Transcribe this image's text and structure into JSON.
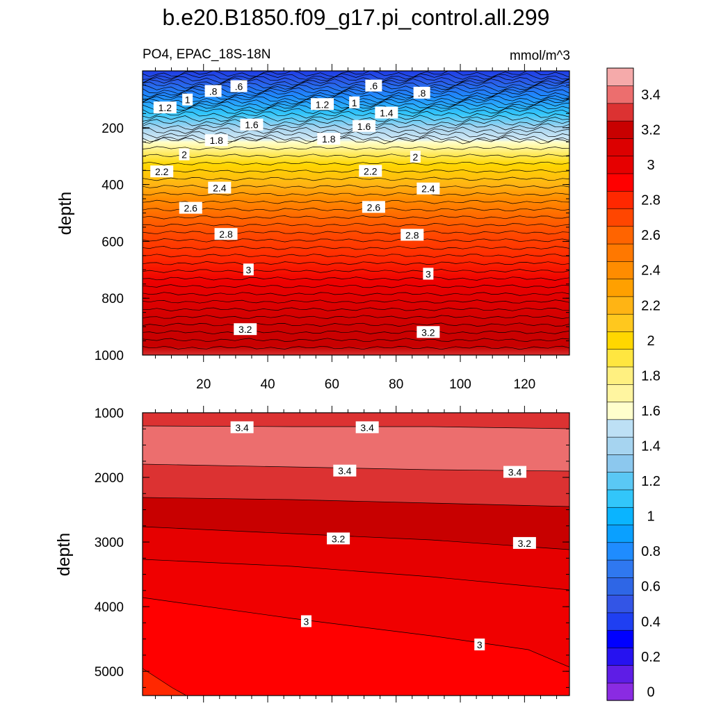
{
  "chart_data": {
    "type": "contour",
    "title": "b.e20.B1850.f09_g17.pi_control.all.299",
    "subtitle_left": "PO4, EPAC_18S-18N",
    "units": "mmol/m^3",
    "ylabel": "depth",
    "xlim": [
      1,
      134
    ],
    "x_ticks": [
      20,
      40,
      60,
      80,
      100,
      120
    ],
    "colorbar": {
      "colors": [
        "#8a2be2",
        "#5e1de6",
        "#2612f0",
        "#0000ff",
        "#1f3ff2",
        "#3355e6",
        "#2e66e6",
        "#2f78f0",
        "#1f8cff",
        "#0aa0ff",
        "#0ab4ff",
        "#32c6fa",
        "#5ac8f5",
        "#8cc8ee",
        "#a6d4f0",
        "#bde0f5",
        "#ffffcc",
        "#fff5a0",
        "#fff080",
        "#ffe640",
        "#ffd700",
        "#ffc81e",
        "#ffb414",
        "#ffa000",
        "#ff8c00",
        "#ff7800",
        "#ff6400",
        "#ff4600",
        "#ff2800",
        "#ff0000",
        "#e60000",
        "#dc0000",
        "#c80000",
        "#dc3232",
        "#ec6e6e",
        "#f5aaaa"
      ],
      "labels": [
        "0",
        "0.2",
        "0.4",
        "0.6",
        "0.8",
        "1",
        "1.2",
        "1.4",
        "1.6",
        "1.8",
        "2",
        "2.2",
        "2.4",
        "2.6",
        "2.8",
        "3",
        "3.2",
        "3.4"
      ]
    },
    "panels": [
      {
        "name": "upper",
        "ylim": [
          0,
          1000
        ],
        "y_ticks": [
          200,
          400,
          600,
          800,
          1000
        ],
        "y_tick_labels": [
          "200",
          "400",
          "600",
          "800",
          "1000"
        ],
        "contour_labels": [
          {
            "text": ".6",
            "x": 31,
            "y": 55
          },
          {
            "text": ".6",
            "x": 73,
            "y": 53
          },
          {
            "text": ".8",
            "x": 23,
            "y": 72
          },
          {
            "text": ".8",
            "x": 88,
            "y": 78
          },
          {
            "text": "1",
            "x": 15,
            "y": 102
          },
          {
            "text": "1",
            "x": 67,
            "y": 112
          },
          {
            "text": "1.2",
            "x": 8,
            "y": 130
          },
          {
            "text": "1.2",
            "x": 57,
            "y": 118
          },
          {
            "text": "1.4",
            "x": 77,
            "y": 148
          },
          {
            "text": "1.6",
            "x": 35,
            "y": 190
          },
          {
            "text": "1.6",
            "x": 70,
            "y": 195
          },
          {
            "text": "1.8",
            "x": 24,
            "y": 245
          },
          {
            "text": "1.8",
            "x": 59,
            "y": 240
          },
          {
            "text": "2",
            "x": 14,
            "y": 295
          },
          {
            "text": "2",
            "x": 86,
            "y": 303
          },
          {
            "text": "2.2",
            "x": 7,
            "y": 355
          },
          {
            "text": "2.2",
            "x": 72,
            "y": 353
          },
          {
            "text": "2.4",
            "x": 25,
            "y": 412
          },
          {
            "text": "2.4",
            "x": 90,
            "y": 415
          },
          {
            "text": "2.6",
            "x": 16,
            "y": 483
          },
          {
            "text": "2.6",
            "x": 73,
            "y": 480
          },
          {
            "text": "2.8",
            "x": 27,
            "y": 575
          },
          {
            "text": "2.8",
            "x": 85,
            "y": 578
          },
          {
            "text": "3",
            "x": 34,
            "y": 700
          },
          {
            "text": "3",
            "x": 90,
            "y": 715
          },
          {
            "text": "3.2",
            "x": 33,
            "y": 910
          },
          {
            "text": "3.2",
            "x": 90,
            "y": 920
          }
        ]
      },
      {
        "name": "lower",
        "ylim": [
          1000,
          5375
        ],
        "y_ticks": [
          1000,
          2000,
          3000,
          4000,
          5000
        ],
        "y_tick_labels": [
          "1000",
          "2000",
          "3000",
          "4000",
          "5000"
        ],
        "contour_labels": [
          {
            "text": "3.4",
            "x": 32,
            "y": 1230
          },
          {
            "text": "3.4",
            "x": 71,
            "y": 1230
          },
          {
            "text": "3.4",
            "x": 64,
            "y": 1900
          },
          {
            "text": "3.4",
            "x": 117,
            "y": 1920
          },
          {
            "text": "3.2",
            "x": 62,
            "y": 2950
          },
          {
            "text": "3.2",
            "x": 120,
            "y": 3020
          },
          {
            "text": "3",
            "x": 52,
            "y": 4230
          },
          {
            "text": "3",
            "x": 106,
            "y": 4590
          }
        ]
      }
    ]
  }
}
